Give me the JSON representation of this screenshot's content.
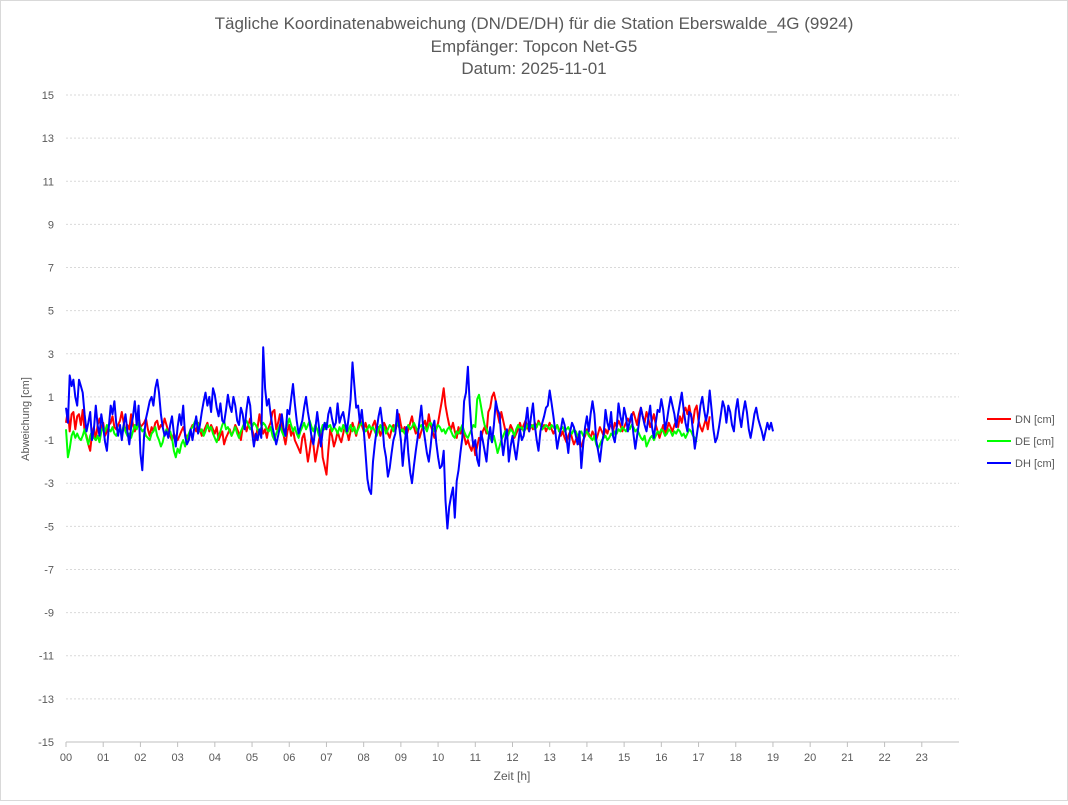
{
  "chart_data": {
    "type": "line",
    "title": [
      "Tägliche Koordinatenabweichung (DN/DE/DH) für die Station Eberswalde_4G (9924)",
      "Empfänger: Topcon Net-G5",
      "Datum: 2025-11-01"
    ],
    "xlabel": "Zeit [h]",
    "ylabel": "Abweichung [cm]",
    "xlim": [
      0,
      24
    ],
    "ylim": [
      -15,
      15
    ],
    "x_ticks": [
      "00",
      "01",
      "02",
      "03",
      "04",
      "05",
      "06",
      "07",
      "08",
      "09",
      "10",
      "11",
      "12",
      "13",
      "14",
      "15",
      "16",
      "17",
      "18",
      "19",
      "20",
      "21",
      "22",
      "23"
    ],
    "y_ticks": [
      15,
      13,
      11,
      9,
      7,
      5,
      3,
      1,
      -1,
      -3,
      -5,
      -7,
      -9,
      -11,
      -13,
      -15
    ],
    "grid": true,
    "legend_position": "right",
    "sampling_interval_h": 0.05,
    "series": [
      {
        "name": "DN [cm]",
        "color": "#ff0000",
        "values": [
          -0.2,
          0.4,
          -0.6,
          0.2,
          0.3,
          -0.5,
          0.1,
          0.2,
          -0.3,
          0.4,
          -0.6,
          -0.8,
          -1.2,
          -1.5,
          -0.7,
          -0.4,
          -1.0,
          -0.3,
          0.0,
          -0.5,
          -0.2,
          -0.8,
          -0.6,
          -0.3,
          -0.2,
          0.1,
          -0.4,
          -0.5,
          -0.3,
          -0.1,
          0.3,
          -0.2,
          -0.6,
          -0.3,
          -0.5,
          0.2,
          -0.3,
          -0.6,
          -0.2,
          0.1,
          -0.4,
          -0.3,
          -0.2,
          0.0,
          -0.5,
          -0.8,
          -0.4,
          -0.6,
          -0.2,
          -0.1,
          -0.5,
          -0.3,
          -0.4,
          0.0,
          -0.3,
          -0.6,
          -0.8,
          -1.0,
          -0.7,
          -0.9,
          -1.0,
          -0.8,
          -0.6,
          -0.4,
          -0.7,
          -0.9,
          -1.0,
          -0.5,
          -0.3,
          -0.4,
          -0.6,
          -0.2,
          -0.5,
          -0.8,
          -0.6,
          -0.4,
          -0.2,
          -0.6,
          -0.3,
          -0.5,
          -0.7,
          -0.4,
          -1.0,
          -0.8,
          -0.6,
          -1.2,
          -0.9,
          -0.7,
          -0.5,
          -0.8,
          -0.6,
          -0.3,
          -0.5,
          -0.7,
          -1.0,
          -0.4,
          -0.2,
          -0.6,
          -0.3,
          0.0,
          -0.5,
          -0.8,
          -1.0,
          -0.4,
          0.2,
          -0.3,
          -0.7,
          -0.5,
          -0.9,
          -0.4,
          -0.2,
          0.3,
          0.4,
          -0.5,
          -0.2,
          0.2,
          -0.4,
          -0.8,
          -1.2,
          -0.6,
          -0.3,
          -0.8,
          -0.5,
          -1.0,
          -1.2,
          -1.4,
          -1.6,
          -0.9,
          -0.7,
          -1.3,
          -2.0,
          -1.5,
          -0.8,
          -1.2,
          -2.0,
          -1.5,
          -1.0,
          -0.6,
          -1.8,
          -2.2,
          -2.6,
          -1.5,
          -0.5,
          -0.8,
          -1.3,
          -1.0,
          -0.6,
          -0.9,
          -1.1,
          -0.7,
          -0.3,
          -0.6,
          -1.0,
          -0.6,
          -0.2,
          -0.5,
          -0.8,
          -0.4,
          0.0,
          -0.3,
          -0.6,
          -0.2,
          -0.5,
          -0.9,
          -0.6,
          -0.3,
          -0.1,
          -0.6,
          -0.4,
          -0.8,
          -0.5,
          -0.2,
          -0.4,
          -0.7,
          -0.9,
          -0.5,
          -0.3,
          -0.6,
          -0.2,
          0.2,
          -0.3,
          -0.6,
          -0.4,
          -0.8,
          -0.5,
          -0.2,
          0.1,
          -0.4,
          -0.7,
          -0.5,
          -0.9,
          -0.6,
          -0.3,
          -0.1,
          -0.5,
          0.2,
          -0.3,
          -0.6,
          -0.9,
          -0.5,
          -0.2,
          0.3,
          0.8,
          1.4,
          0.6,
          0.1,
          -0.3,
          -0.5,
          -0.2,
          -0.6,
          -0.9,
          -0.4,
          -0.7,
          -0.5,
          -0.8,
          -1.2,
          -1.0,
          -1.3,
          -1.5,
          -1.1,
          -1.7,
          -1.3,
          -0.9,
          -1.0,
          -0.6,
          -0.4,
          -0.7,
          0.3,
          0.5,
          1.0,
          1.2,
          0.8,
          0.2,
          -0.2,
          0.3,
          -0.1,
          -0.5,
          -0.8,
          -0.6,
          -0.3,
          -0.5,
          -0.9,
          -0.7,
          -0.5,
          -0.2,
          -0.5,
          -0.3,
          -0.1,
          -0.4,
          -0.6,
          -0.3,
          -0.5,
          -0.2,
          -0.4,
          -0.1,
          -0.3,
          -0.5,
          -0.3,
          -0.6,
          -0.4,
          -0.2,
          -0.5,
          -0.7,
          -0.5,
          -0.3,
          -0.5,
          -0.8,
          -0.6,
          -0.9,
          -1.1,
          -0.8,
          -0.6,
          -0.9,
          -1.2,
          -1.0,
          -0.8,
          -1.2,
          -1.3,
          -1.0,
          -0.8,
          -0.5,
          -0.7,
          -0.9,
          -0.6,
          -0.8,
          -1.0,
          -0.7,
          -0.4,
          -0.6,
          -0.8,
          -0.5,
          -0.7,
          -0.4,
          -0.3,
          -0.6,
          -0.2,
          -0.4,
          -0.1,
          -0.3,
          -0.6,
          -0.4,
          -0.2,
          0.0,
          -0.2,
          0.1,
          0.3,
          0.0,
          -0.3,
          0.2,
          0.5,
          0.1,
          -0.2,
          0.3,
          0.0,
          -0.4,
          -0.1,
          0.2,
          -0.3,
          -0.6,
          -0.9,
          -0.6,
          -0.3,
          -0.7,
          -0.5,
          -0.2,
          -0.4,
          -0.6,
          -0.3,
          -0.1,
          -0.4,
          0.1,
          -0.2,
          0.3,
          0.5,
          0.2,
          0.6,
          0.1,
          -0.2,
          0.4,
          0.6,
          -0.1,
          -0.4,
          -0.6,
          -0.3,
          0.0,
          -0.5,
          0.1
        ]
      },
      {
        "name": "DE [cm]",
        "color": "#00ff00",
        "values": [
          -0.5,
          -1.8,
          -1.4,
          -0.8,
          -0.6,
          -0.9,
          -0.7,
          -0.9,
          -1.0,
          -0.8,
          -0.5,
          -0.9,
          -1.2,
          -0.8,
          -0.6,
          -0.9,
          -1.0,
          -0.8,
          -1.1,
          -0.6,
          -0.4,
          -0.6,
          -0.3,
          -0.5,
          -0.6,
          -0.4,
          -0.7,
          -0.8,
          -0.6,
          -0.5,
          -0.7,
          -0.3,
          -0.6,
          -0.8,
          -0.7,
          -0.9,
          -0.6,
          -0.3,
          -0.5,
          -0.2,
          -0.4,
          -0.6,
          -0.5,
          -0.8,
          -0.9,
          -1.0,
          -0.7,
          -0.6,
          -0.4,
          -0.8,
          -1.0,
          -1.3,
          -1.1,
          -0.7,
          -0.5,
          -0.8,
          -0.6,
          -0.9,
          -1.5,
          -1.8,
          -1.4,
          -1.6,
          -1.2,
          -1.0,
          -1.3,
          -0.9,
          -0.7,
          -0.5,
          -0.4,
          -0.2,
          0.0,
          -0.3,
          -0.6,
          -0.5,
          -0.8,
          -0.6,
          -0.3,
          -0.5,
          -0.4,
          -0.7,
          -0.9,
          -1.1,
          -0.8,
          -0.6,
          -0.3,
          -0.1,
          -0.5,
          -0.4,
          -0.6,
          -0.8,
          -0.6,
          -0.4,
          -0.7,
          -0.9,
          -0.6,
          -0.4,
          -0.2,
          -0.1,
          -0.3,
          -0.5,
          -0.4,
          -0.2,
          -0.3,
          -0.5,
          -0.7,
          -0.4,
          -0.2,
          -0.3,
          -0.5,
          -0.6,
          -0.4,
          -0.8,
          -1.0,
          -0.7,
          -0.5,
          -0.3,
          -0.6,
          -0.8,
          -0.5,
          -0.3,
          0.0,
          -0.3,
          -0.6,
          -0.4,
          -0.7,
          -0.9,
          -0.6,
          -0.4,
          -0.2,
          -0.5,
          -0.3,
          -0.1,
          -0.4,
          -0.6,
          -0.3,
          -0.5,
          -0.8,
          -0.6,
          -0.3,
          -0.5,
          -0.2,
          -0.4,
          -0.3,
          -0.6,
          -0.4,
          -0.5,
          -0.7,
          -0.4,
          -0.6,
          -0.3,
          -0.5,
          -0.7,
          -0.5,
          -0.3,
          -0.6,
          -0.4,
          -0.7,
          -0.5,
          -0.3,
          -0.2,
          -0.4,
          -0.6,
          -0.5,
          -0.3,
          -0.5,
          -0.4,
          -0.6,
          -0.8,
          -0.5,
          -0.3,
          -0.6,
          -0.4,
          -0.7,
          -0.5,
          -0.3,
          -0.4,
          -0.6,
          -0.3,
          -0.2,
          -0.4,
          -0.6,
          -0.5,
          -0.7,
          -0.5,
          -0.3,
          -0.5,
          -0.4,
          -0.2,
          -0.4,
          -0.6,
          -0.4,
          -0.3,
          -0.5,
          -0.4,
          -0.6,
          -0.3,
          -0.2,
          -0.4,
          -0.6,
          -0.5,
          -0.3,
          -0.4,
          -0.6,
          -0.5,
          -0.7,
          -0.5,
          -0.4,
          -0.6,
          -0.8,
          -0.9,
          -0.6,
          -0.7,
          -0.5,
          -0.3,
          -0.6,
          -0.8,
          -0.9,
          -0.7,
          -0.5,
          -0.3,
          -0.4,
          0.9,
          1.1,
          0.6,
          0.1,
          -0.3,
          -0.5,
          -0.7,
          -0.9,
          -1.1,
          -0.8,
          -1.2,
          -1.6,
          -1.3,
          -1.0,
          -0.8,
          -0.6,
          -0.9,
          -0.7,
          -0.5,
          -0.6,
          -0.8,
          -0.5,
          -0.3,
          -0.5,
          -0.4,
          -0.6,
          -0.5,
          -0.3,
          -0.2,
          -0.4,
          -0.3,
          -0.5,
          -0.4,
          -0.2,
          -0.3,
          -0.5,
          -0.4,
          -0.3,
          -0.4,
          -0.5,
          -0.3,
          -0.4,
          -0.5,
          -0.3,
          -0.6,
          -0.5,
          -0.4,
          -0.6,
          -0.5,
          -0.4,
          -0.6,
          -0.7,
          -0.5,
          -0.6,
          -0.8,
          -0.7,
          -0.6,
          -0.8,
          -0.7,
          -0.6,
          -0.8,
          -0.9,
          -1.0,
          -0.8,
          -1.2,
          -1.4,
          -1.2,
          -1.0,
          -0.9,
          -0.8,
          -1.0,
          -0.9,
          -0.7,
          -0.8,
          -0.6,
          -0.7,
          -0.5,
          -0.6,
          -0.4,
          -0.5,
          -0.6,
          -0.4,
          -0.5,
          -0.3,
          -0.4,
          -0.6,
          -0.5,
          -0.7,
          -0.9,
          -1.0,
          -0.8,
          -1.3,
          -1.1,
          -0.9,
          -0.8,
          -1.0,
          -0.8,
          -0.6,
          -0.7,
          -0.5,
          -0.6,
          -0.8,
          -0.7,
          -0.5,
          -0.6,
          -0.8,
          -0.6,
          -0.7,
          -0.5,
          -0.6,
          -0.8,
          -0.7,
          -0.9,
          -0.7,
          -0.5,
          -0.6,
          -0.8,
          -0.9,
          -1.1
        ]
      },
      {
        "name": "DH [cm]",
        "color": "#0000ff",
        "values": [
          0.5,
          -0.2,
          2.0,
          1.5,
          1.8,
          1.0,
          0.6,
          1.8,
          1.5,
          1.2,
          0.2,
          -0.6,
          -0.2,
          0.3,
          -1.0,
          -0.5,
          0.6,
          -0.3,
          -0.8,
          0.2,
          -0.4,
          -1.1,
          -1.5,
          -0.4,
          0.6,
          0.2,
          0.8,
          -0.2,
          -0.8,
          -0.3,
          -1.0,
          -0.3,
          0.2,
          -0.6,
          -1.2,
          -0.4,
          0.1,
          0.8,
          -0.3,
          0.6,
          -1.6,
          -2.4,
          -0.8,
          0.0,
          0.4,
          0.8,
          1.0,
          0.6,
          1.4,
          1.8,
          1.2,
          0.2,
          -0.4,
          -0.8,
          -0.6,
          -0.9,
          -0.3,
          0.1,
          -0.7,
          -1.3,
          -0.4,
          0.2,
          -0.3,
          0.6,
          -0.8,
          -1.2,
          -1.0,
          -0.5,
          -1.0,
          -0.4,
          0.1,
          -0.7,
          -0.3,
          0.3,
          0.8,
          1.2,
          0.6,
          1.0,
          0.3,
          1.4,
          1.1,
          0.5,
          0.1,
          0.7,
          -0.1,
          -0.2,
          0.4,
          1.1,
          0.6,
          0.3,
          1.0,
          0.6,
          -0.1,
          -0.3,
          0.5,
          0.2,
          -0.5,
          0.4,
          1.0,
          0.6,
          -0.6,
          -1.3,
          -0.7,
          -1.0,
          -0.5,
          -0.9,
          3.3,
          1.4,
          0.6,
          0.9,
          0.2,
          -0.4,
          -0.8,
          -1.2,
          -0.8,
          -0.4,
          0.2,
          -0.5,
          -0.8,
          0.4,
          0.2,
          0.9,
          1.6,
          0.7,
          -0.1,
          -0.7,
          -0.4,
          -0.1,
          0.5,
          1.0,
          0.3,
          -0.2,
          -0.9,
          -1.2,
          -0.5,
          0.3,
          -0.4,
          -1.3,
          -0.6,
          -0.2,
          -0.5,
          0.2,
          0.5,
          0.0,
          -0.4,
          -0.2,
          0.7,
          -0.2,
          0.1,
          0.3,
          -0.2,
          -0.6,
          0.1,
          0.9,
          2.6,
          1.5,
          0.5,
          0.6,
          -0.2,
          0.4,
          -0.5,
          -1.6,
          -2.8,
          -3.3,
          -3.5,
          -2.0,
          -1.2,
          -0.5,
          0.1,
          0.5,
          -0.2,
          -1.3,
          -1.8,
          -2.7,
          -2.3,
          -1.6,
          -1.0,
          -0.7,
          0.4,
          -0.3,
          -1.0,
          -2.2,
          -1.2,
          -0.4,
          -1.6,
          -2.5,
          -3.0,
          -2.2,
          -1.5,
          -0.9,
          -0.1,
          0.6,
          -0.4,
          -1.0,
          -1.6,
          -2.0,
          -1.3,
          -0.4,
          -0.1,
          -1.1,
          -1.8,
          -2.3,
          -2.2,
          -1.5,
          -3.8,
          -5.1,
          -4.1,
          -3.6,
          -3.2,
          -4.6,
          -2.9,
          -2.4,
          -1.6,
          -0.9,
          0.8,
          1.2,
          2.4,
          0.7,
          -0.6,
          -1.3,
          -1.0,
          -1.9,
          -2.2,
          -0.6,
          -1.0,
          -1.5,
          -2.0,
          -1.0,
          -0.4,
          -1.1,
          -0.3,
          0.8,
          0.4,
          0.2,
          -0.9,
          -1.7,
          -1.0,
          -0.5,
          -2.0,
          -1.3,
          -0.8,
          -1.4,
          -1.9,
          -1.2,
          -0.5,
          -1.0,
          -0.8,
          -0.2,
          0.5,
          -0.6,
          0.1,
          0.7,
          -0.3,
          -1.0,
          -1.5,
          -0.6,
          -0.2,
          0.1,
          0.5,
          0.6,
          1.3,
          0.7,
          0.1,
          -0.6,
          -1.4,
          -0.9,
          -0.5,
          0.0,
          -0.3,
          -0.9,
          -1.6,
          -0.6,
          -0.2,
          -0.4,
          -0.8,
          -1.2,
          -0.6,
          -2.3,
          -1.2,
          -0.4,
          0.1,
          -0.6,
          0.2,
          0.8,
          0.2,
          -1.0,
          -1.5,
          -2.0,
          -1.2,
          -0.7,
          0.4,
          -0.2,
          -0.5,
          0.3,
          -0.8,
          -1.1,
          -0.4,
          0.7,
          0.1,
          -0.3,
          0.5,
          0.1,
          -0.6,
          -0.1,
          0.2,
          -0.7,
          -1.4,
          -0.8,
          -0.2,
          0.5,
          0.1,
          -0.3,
          -0.6,
          0.0,
          0.6,
          -0.4,
          -0.9,
          -0.2,
          0.4,
          0.3,
          0.9,
          0.4,
          -0.5,
          -0.1,
          0.5,
          1.0,
          0.6,
          0.2,
          -0.4,
          0.2,
          0.7,
          1.2,
          0.4,
          -0.2,
          -0.6,
          0.3,
          0.2,
          -0.6,
          -1.4,
          -0.8,
          -0.2,
          0.6,
          1.0,
          0.4,
          -0.1,
          0.3,
          1.3,
          0.4,
          -0.5,
          -1.1,
          -0.9,
          -0.4,
          0.2,
          0.8,
          0.5,
          -0.2,
          0.6,
          0.3,
          -0.3,
          -0.6,
          0.4,
          0.9,
          0.1,
          -0.4,
          0.3,
          0.8,
          0.3,
          -0.5,
          -0.9,
          -0.4,
          0.2,
          0.5,
          0.0,
          -0.3,
          -0.6,
          -1.0,
          -0.6,
          -0.2,
          -0.5,
          -0.2,
          -0.6
        ]
      }
    ]
  }
}
